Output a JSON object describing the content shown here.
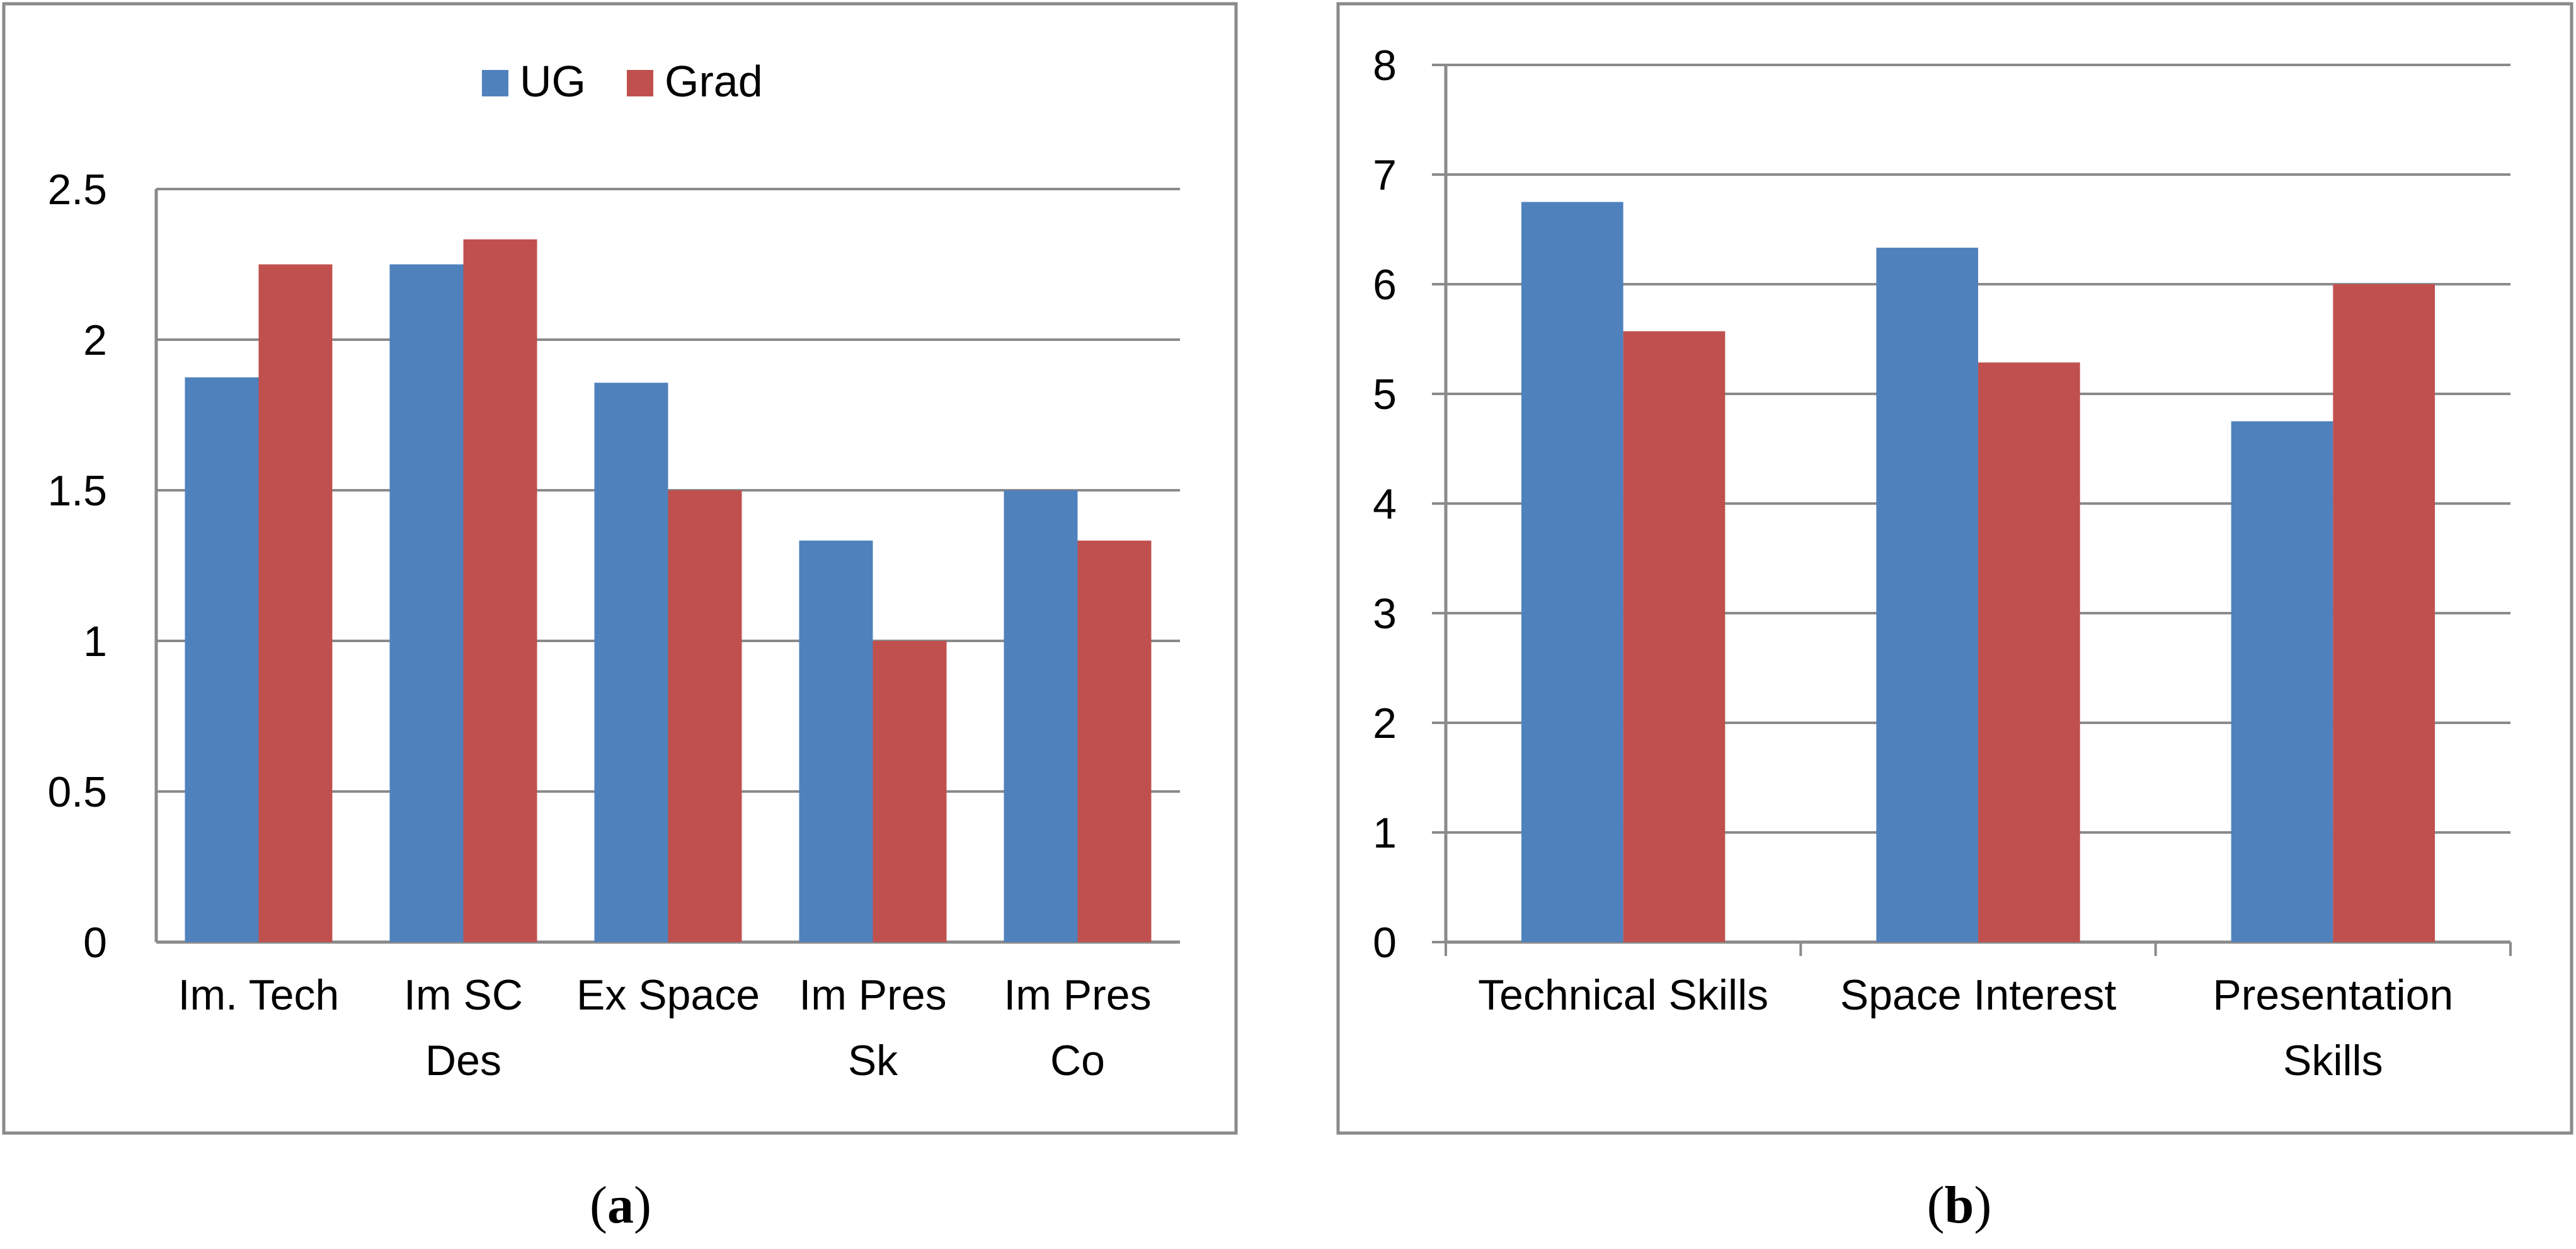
{
  "chart_data": [
    {
      "type": "bar",
      "title": "",
      "caption_letter": "a",
      "xlabel": "",
      "ylabel": "",
      "categories": [
        [
          "Im. Tech"
        ],
        [
          "Im SC",
          "Des"
        ],
        [
          "Ex Space"
        ],
        [
          "Im Pres",
          "Sk"
        ],
        [
          "Im Pres",
          "Co"
        ]
      ],
      "series": [
        {
          "name": "UG",
          "color": "#4f81bd",
          "values": [
            1.875,
            2.25,
            1.857,
            1.333,
            1.5
          ]
        },
        {
          "name": "Grad",
          "color": "#c0504d",
          "values": [
            2.25,
            2.333,
            1.5,
            1.0,
            1.333
          ]
        }
      ],
      "ylim": [
        0,
        2.5
      ],
      "yticks": [
        "0",
        "0.5",
        "1",
        "1.5",
        "2",
        "2.5"
      ],
      "grid": true,
      "legend": "top-center"
    },
    {
      "type": "bar",
      "title": "",
      "caption_letter": "b",
      "xlabel": "",
      "ylabel": "",
      "categories": [
        [
          "Technical Skills"
        ],
        [
          "Space Interest"
        ],
        [
          "Presentation",
          "Skills"
        ]
      ],
      "series": [
        {
          "name": "UG",
          "color": "#4f81bd",
          "values": [
            6.75,
            6.333,
            4.75
          ]
        },
        {
          "name": "Grad",
          "color": "#c0504d",
          "values": [
            5.571,
            5.286,
            6.0
          ]
        }
      ],
      "ylim": [
        0,
        8
      ],
      "yticks": [
        "0",
        "1",
        "2",
        "3",
        "4",
        "5",
        "6",
        "7",
        "8"
      ],
      "grid": true,
      "legend": "none"
    }
  ]
}
